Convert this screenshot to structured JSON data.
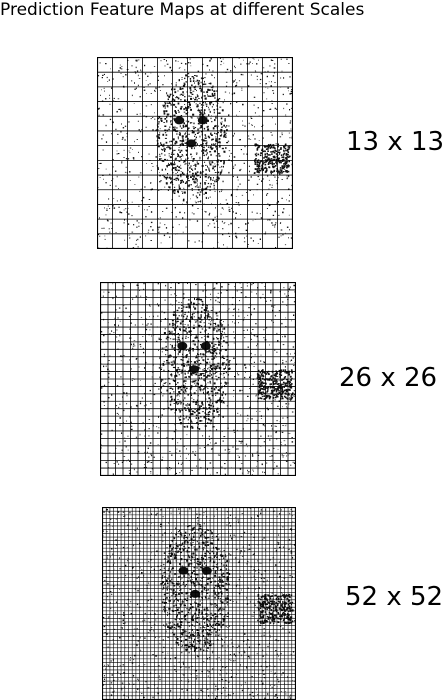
{
  "title": "Prediction Feature Maps at different Scales",
  "maps": [
    {
      "label": "13 x 13",
      "grid": 13,
      "image": "stippled grayscale dog photo"
    },
    {
      "label": "26 x 26",
      "grid": 26,
      "image": "stippled grayscale dog photo"
    },
    {
      "label": "52 x 52",
      "grid": 52,
      "image": "stippled grayscale dog photo"
    }
  ],
  "colors": {
    "grid": "#000000",
    "background": "#ffffff",
    "ink": "#111111"
  }
}
